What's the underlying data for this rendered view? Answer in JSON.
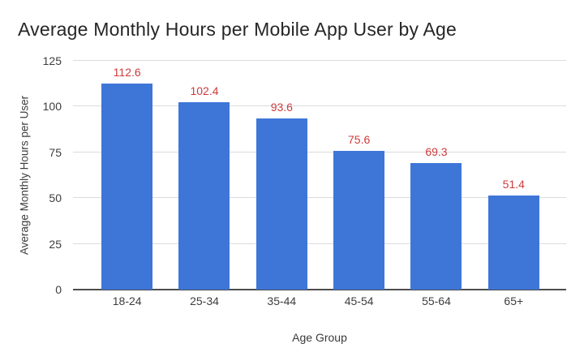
{
  "chart_data": {
    "type": "bar",
    "title": "Average Monthly Hours per Mobile App User by Age",
    "categories": [
      "18-24",
      "25-34",
      "35-44",
      "45-54",
      "55-64",
      "65+"
    ],
    "values": [
      112.6,
      102.4,
      93.6,
      75.6,
      69.3,
      51.4
    ],
    "value_labels": [
      "112.6",
      "102.4",
      "93.6",
      "75.6",
      "69.3",
      "51.4"
    ],
    "xlabel": "Age Group",
    "ylabel": "Average Monthly Hours per User",
    "ylim": [
      0,
      125
    ],
    "y_ticks": [
      0,
      25,
      50,
      75,
      100,
      125
    ],
    "grid": true,
    "legend": "none",
    "colors": {
      "bar": "#3e76d8",
      "data_label": "#cc3b3b",
      "title_text": "#262626",
      "axis_text": "#3d3d3d",
      "gridline": "#dcdcdc",
      "baseline": "#4d4d4d",
      "background": "#ffffff"
    }
  }
}
